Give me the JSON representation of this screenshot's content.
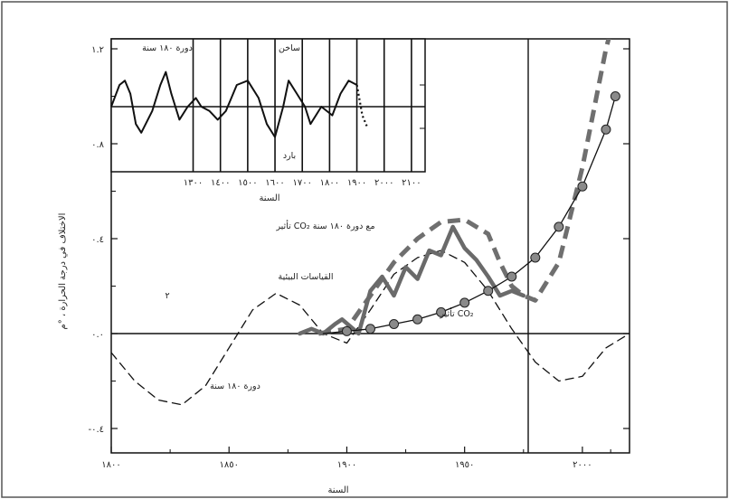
{
  "chart_data": [
    {
      "type": "line",
      "xlabel": "السنة",
      "ylabel": "الاختلاف في درجة الحرارة ، °م",
      "xlim": [
        1800,
        2020
      ],
      "ylim": [
        -0.5,
        1.2
      ],
      "x_ticks": [
        {
          "value": 1800,
          "label": "١٨٠٠"
        },
        {
          "value": 1850,
          "label": "١٨٥٠"
        },
        {
          "value": 1900,
          "label": "١٩٠٠"
        },
        {
          "value": 1950,
          "label": "١٩٥٠"
        },
        {
          "value": 2000,
          "label": "٢٠٠٠"
        }
      ],
      "y_ticks": [
        {
          "value": -0.4,
          "label": "-٠.٤"
        },
        {
          "value": 0.0,
          "label": "٠.٠"
        },
        {
          "value": 0.4,
          "label": "٠.٤"
        },
        {
          "value": 0.8,
          "label": "٠.٨"
        },
        {
          "value": 1.2,
          "label": "١.٢"
        }
      ],
      "vline_year": 1977,
      "series": [
        {
          "name": "دورة ١٨٠ سنة",
          "style": "dashed-thin",
          "color": "#111111",
          "x": [
            1800,
            1810,
            1820,
            1830,
            1840,
            1850,
            1860,
            1870,
            1880,
            1890,
            1900,
            1910,
            1920,
            1930,
            1940,
            1950,
            1960,
            1970,
            1980,
            1990,
            2000,
            2010,
            2020
          ],
          "y": [
            -0.08,
            -0.2,
            -0.28,
            -0.3,
            -0.22,
            -0.06,
            0.1,
            0.17,
            0.12,
            0.0,
            -0.04,
            0.1,
            0.25,
            0.32,
            0.35,
            0.3,
            0.18,
            0.02,
            -0.12,
            -0.2,
            -0.18,
            -0.06,
            0.0
          ]
        },
        {
          "name": "تأثير CO₂ مع دورة ١٨٠ سنة",
          "style": "dashed-thick",
          "color": "#6f6f6f",
          "x": [
            1888,
            1900,
            1910,
            1920,
            1930,
            1940,
            1950,
            1960,
            1965,
            1970,
            1975,
            1980,
            1990,
            2000,
            2010,
            2014
          ],
          "y": [
            0.0,
            0.02,
            0.16,
            0.3,
            0.4,
            0.47,
            0.48,
            0.42,
            0.3,
            0.2,
            0.16,
            0.14,
            0.3,
            0.7,
            1.2,
            1.35
          ]
        },
        {
          "name": "القياسات البيئية",
          "style": "solid-thick",
          "color": "#6a6a6a",
          "x": [
            1880,
            1885,
            1890,
            1895,
            1898,
            1905,
            1910,
            1915,
            1920,
            1925,
            1930,
            1935,
            1940,
            1945,
            1950,
            1955,
            1960,
            1965,
            1970,
            1975
          ],
          "y": [
            0.0,
            0.02,
            0.0,
            0.04,
            0.06,
            0.0,
            0.18,
            0.24,
            0.16,
            0.28,
            0.23,
            0.35,
            0.33,
            0.45,
            0.36,
            0.31,
            0.24,
            0.16,
            0.18,
            0.16
          ]
        },
        {
          "name": "تأثير CO₂",
          "style": "solid-markers",
          "color": "#111111",
          "x": [
            1890,
            1900,
            1910,
            1920,
            1930,
            1940,
            1950,
            1960,
            1970,
            1980,
            1990,
            2000,
            2010,
            2014
          ],
          "y": [
            0.0,
            0.01,
            0.02,
            0.04,
            0.06,
            0.09,
            0.13,
            0.18,
            0.24,
            0.32,
            0.45,
            0.62,
            0.86,
            1.0
          ]
        }
      ],
      "annotations": [
        "تأثير CO₂ مع دورة ١٨٠ سنة",
        "القياسات البيئية",
        "تأثير CO₂",
        "دورة ١٨٠ سنة",
        "٢"
      ]
    },
    {
      "type": "line",
      "xlabel": "السنة",
      "xlim": [
        1000,
        2150
      ],
      "x_ticks": [
        {
          "value": 1300,
          "label": "١٣٠٠"
        },
        {
          "value": 1400,
          "label": "١٤٠٠"
        },
        {
          "value": 1500,
          "label": "١٥٠٠"
        },
        {
          "value": 1600,
          "label": "١٦٠٠"
        },
        {
          "value": 1700,
          "label": "١٧٠٠"
        },
        {
          "value": 1800,
          "label": "١٨٠٠"
        },
        {
          "value": 1900,
          "label": "١٩٠٠"
        },
        {
          "value": 2000,
          "label": "٢٠٠٠"
        },
        {
          "value": 2100,
          "label": "٢١٠٠"
        }
      ],
      "series": [
        {
          "name": "دورة ١٨٠ سنة",
          "style": "solid",
          "color": "#111111",
          "x": [
            1000,
            1030,
            1050,
            1070,
            1090,
            1110,
            1150,
            1180,
            1200,
            1220,
            1250,
            1280,
            1310,
            1330,
            1360,
            1390,
            1420,
            1440,
            1460,
            1500,
            1540,
            1570,
            1600,
            1630,
            1650,
            1680,
            1710,
            1730,
            1770,
            1810,
            1840,
            1870,
            1900,
            1920,
            1940
          ],
          "y": [
            0.0,
            0.5,
            0.6,
            0.3,
            -0.4,
            -0.6,
            -0.1,
            0.5,
            0.8,
            0.3,
            -0.3,
            0.0,
            0.2,
            0.0,
            -0.1,
            -0.3,
            -0.1,
            0.2,
            0.5,
            0.6,
            0.2,
            -0.4,
            -0.7,
            0.0,
            0.6,
            0.3,
            0.0,
            -0.4,
            0.0,
            -0.2,
            0.3,
            0.6,
            0.5,
            -0.2,
            -0.5
          ]
        }
      ],
      "annotations": [
        "دورة ١٨٠ سنة",
        "ساخن",
        "بارد"
      ]
    }
  ]
}
